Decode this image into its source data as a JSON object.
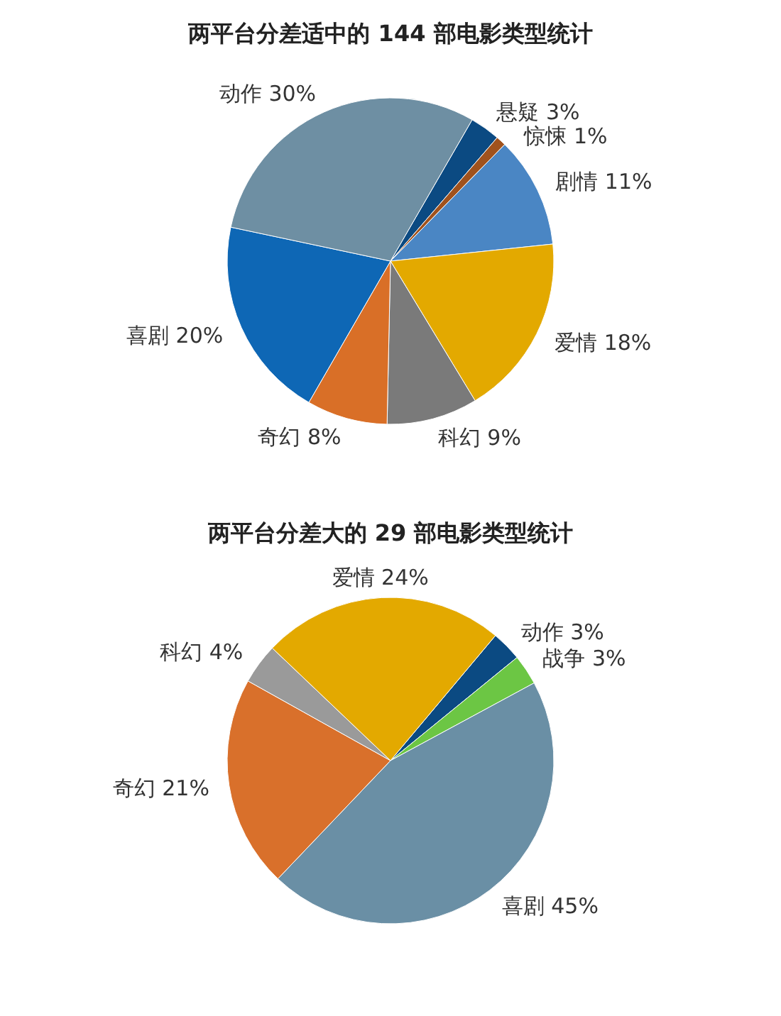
{
  "chart_data": [
    {
      "type": "pie",
      "title": "两平台分差适中的 144 部电影类型统计",
      "categories": [
        "悬疑",
        "惊悚",
        "剧情",
        "爱情",
        "科幻",
        "奇幻",
        "喜剧",
        "动作"
      ],
      "values": [
        3,
        1,
        11,
        18,
        9,
        8,
        20,
        30
      ],
      "value_labels": [
        "3%",
        "1%",
        "11%",
        "18%",
        "9%",
        "8%",
        "20%",
        "30%"
      ],
      "colors": [
        "#0b4a82",
        "#a0521d",
        "#4a86c4",
        "#e3a900",
        "#7a7a7a",
        "#d96f27",
        "#0e67b5",
        "#6e8fa3"
      ]
    },
    {
      "type": "pie",
      "title": "两平台分差大的 29 部电影类型统计",
      "categories": [
        "动作",
        "战争",
        "喜剧",
        "奇幻",
        "科幻",
        "爱情"
      ],
      "values": [
        3,
        3,
        45,
        21,
        4,
        24
      ],
      "value_labels": [
        "3%",
        "3%",
        "45%",
        "21%",
        "4%",
        "24%"
      ],
      "colors": [
        "#0b4a82",
        "#6cc644",
        "#6a8fa5",
        "#d9702b",
        "#9a9a9a",
        "#e3a900"
      ]
    }
  ]
}
